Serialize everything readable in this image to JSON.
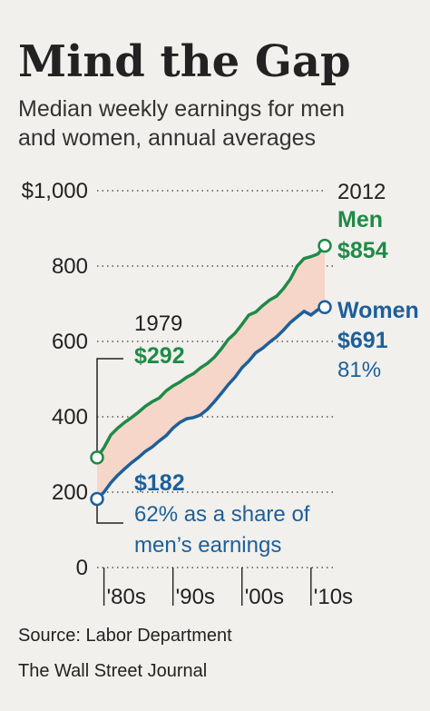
{
  "header": {
    "title": "Mind the Gap",
    "subtitle_line1": "Median weekly earnings for men",
    "subtitle_line2": "and women, annual averages"
  },
  "footer": {
    "source": "Source: Labor Department",
    "publisher": "The Wall Street Journal"
  },
  "colors": {
    "men": "#1f8a47",
    "women": "#1d5f99",
    "gap_fill": "#f6d6c9",
    "text": "#222222",
    "grid": "#555555",
    "background": "#f1f0ec"
  },
  "chart_data": {
    "type": "line",
    "title": "Mind the Gap",
    "subtitle": "Median weekly earnings for men and women, annual averages",
    "ylim": [
      0,
      1000
    ],
    "xlim": [
      1979,
      2012
    ],
    "y_ticks": [
      0,
      200,
      400,
      600,
      800,
      1000
    ],
    "y_tick_labels": [
      "0",
      "200",
      "400",
      "600",
      "800",
      "$1,000"
    ],
    "x_ticks": [
      1980,
      1990,
      2000,
      2010
    ],
    "x_tick_labels": [
      "'80s",
      "'90s",
      "'00s",
      "'10s"
    ],
    "grid": "horizontal dotted",
    "series": [
      {
        "name": "Men",
        "x": [
          1979,
          1980,
          1981,
          1982,
          1983,
          1984,
          1985,
          1986,
          1987,
          1988,
          1989,
          1990,
          1991,
          1992,
          1993,
          1994,
          1995,
          1996,
          1997,
          1998,
          1999,
          2000,
          2001,
          2002,
          2003,
          2004,
          2005,
          2006,
          2007,
          2008,
          2009,
          2010,
          2011,
          2012
        ],
        "values": [
          292,
          318,
          352,
          370,
          385,
          398,
          412,
          428,
          440,
          450,
          469,
          482,
          492,
          505,
          515,
          530,
          542,
          558,
          580,
          605,
          622,
          645,
          670,
          678,
          695,
          710,
          720,
          740,
          765,
          800,
          820,
          825,
          832,
          854
        ]
      },
      {
        "name": "Women",
        "x": [
          1979,
          1980,
          1981,
          1982,
          1983,
          1984,
          1985,
          1986,
          1987,
          1988,
          1989,
          1990,
          1991,
          1992,
          1993,
          1994,
          1995,
          1996,
          1997,
          1998,
          1999,
          2000,
          2001,
          2002,
          2003,
          2004,
          2005,
          2006,
          2007,
          2008,
          2009,
          2010,
          2011,
          2012
        ],
        "values": [
          182,
          200,
          225,
          245,
          262,
          278,
          292,
          308,
          320,
          336,
          350,
          370,
          385,
          395,
          398,
          405,
          420,
          440,
          462,
          485,
          505,
          530,
          548,
          570,
          582,
          598,
          612,
          630,
          650,
          665,
          680,
          670,
          684,
          691
        ]
      }
    ],
    "annotations": {
      "start_year": "1979",
      "men_start_value": "$292",
      "women_start_value": "$182",
      "women_start_share_line1": "62% as a share of",
      "women_start_share_line2": "men’s earnings",
      "end_year": "2012",
      "men_end_label": "Men",
      "men_end_value": "$854",
      "women_end_label": "Women",
      "women_end_value": "$691",
      "women_end_share": "81%"
    }
  }
}
